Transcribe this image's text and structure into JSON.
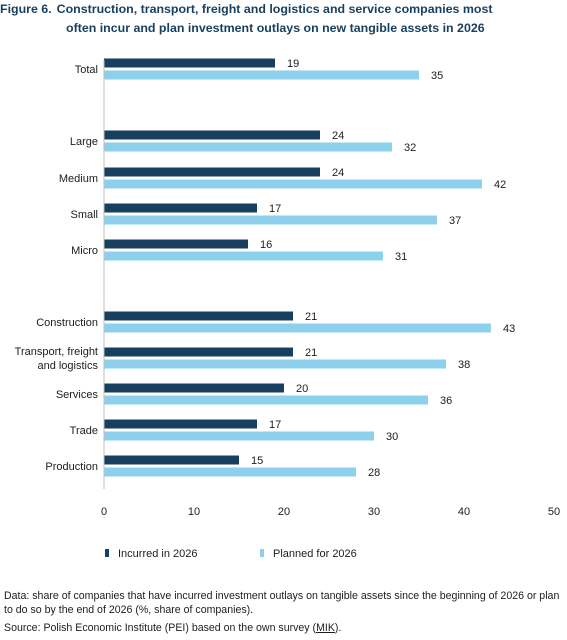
{
  "title": {
    "label": "Figure 6.",
    "line1": "Construction, transport, freight and logistics and service companies most",
    "line2": "often incur and plan investment outlays on new tangible assets in 2026"
  },
  "chart_data": {
    "type": "bar",
    "orientation": "horizontal",
    "categories": [
      "Total",
      "Large",
      "Medium",
      "Small",
      "Micro",
      "Construction",
      "Transport, freight and logistics",
      "Services",
      "Trade",
      "Production"
    ],
    "series": [
      {
        "name": "Incurred in 2026",
        "color": "#173f5f",
        "values": [
          19,
          24,
          24,
          17,
          16,
          21,
          21,
          20,
          17,
          15
        ]
      },
      {
        "name": "Planned for 2026",
        "color": "#8dd0ec",
        "values": [
          35,
          32,
          42,
          37,
          31,
          43,
          38,
          36,
          30,
          28
        ]
      }
    ],
    "xlim": [
      0,
      50
    ],
    "xticks": [
      0,
      10,
      20,
      30,
      40,
      50
    ],
    "grid": false,
    "legend_position": "bottom-left"
  },
  "notes": {
    "data": "Data: share of companies that have incurred investment outlays on tangible assets since the beginning of 2026 or plan to do so by the end of 2026 (%, share of companies).",
    "source_prefix": "Source: Polish Economic Institute (PEI) based on the own survey (",
    "source_link": "MIK",
    "source_suffix": ")."
  }
}
